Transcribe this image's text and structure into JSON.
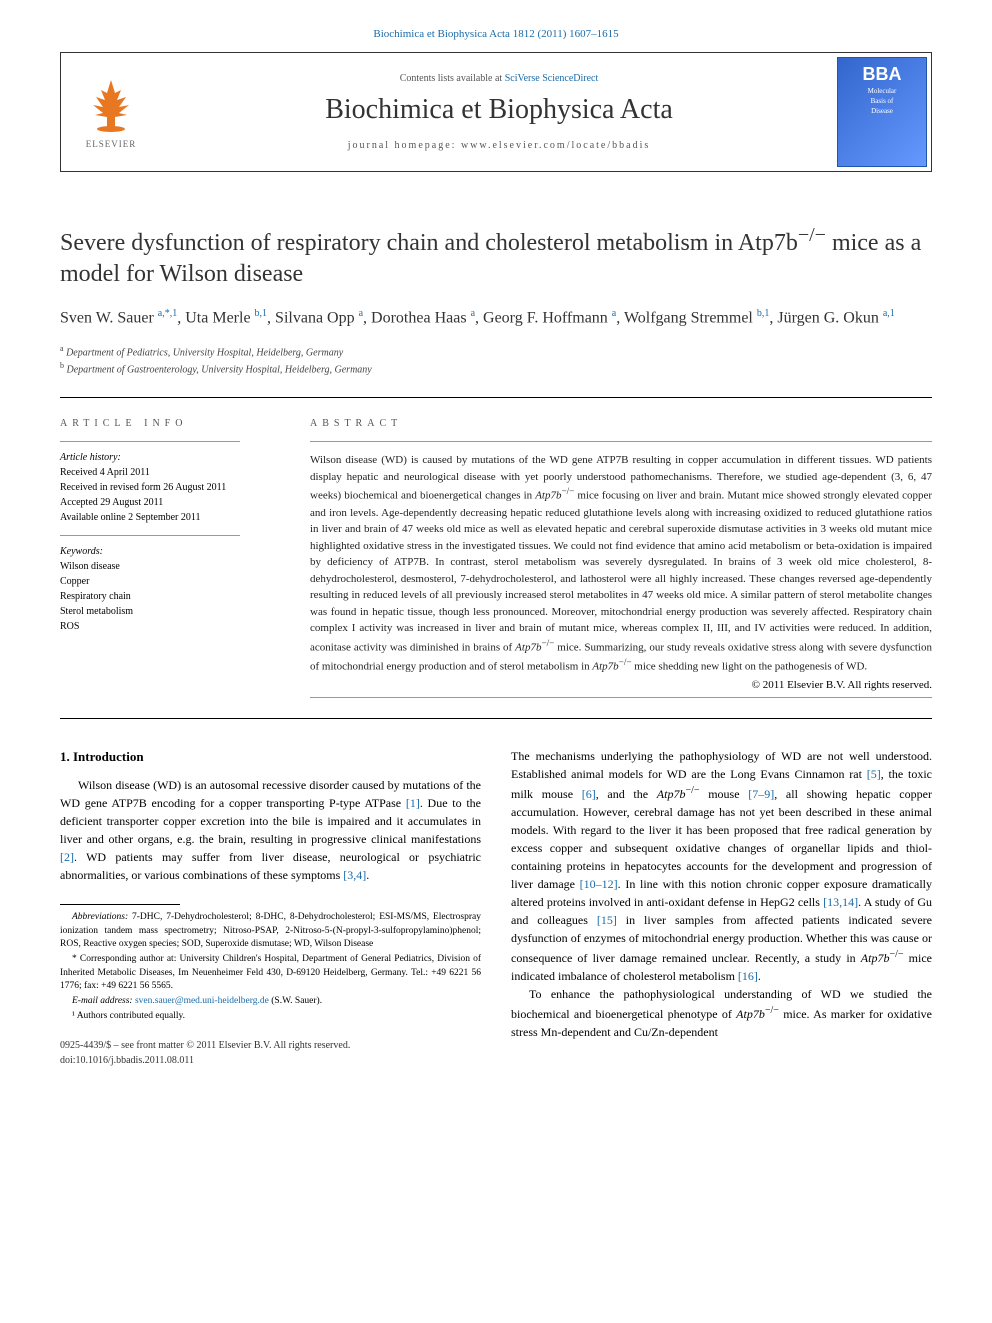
{
  "journal_ref": "Biochimica et Biophysica Acta 1812 (2011) 1607–1615",
  "header": {
    "contents_prefix": "Contents lists available at ",
    "contents_link": "SciVerse ScienceDirect",
    "journal_name": "Biochimica et Biophysica Acta",
    "homepage_prefix": "journal homepage: ",
    "homepage": "www.elsevier.com/locate/bbadis",
    "elsevier_label": "ELSEVIER",
    "cover_top": "BBA",
    "cover_sub1": "Molecular",
    "cover_sub2": "Basis of",
    "cover_sub3": "Disease"
  },
  "title_line1": "Severe dysfunction of respiratory chain and cholesterol metabolism in Atp7b",
  "title_sup": "−/−",
  "title_line2": " mice as a model for Wilson disease",
  "authors_html": "Sven W. Sauer <sup>a,*,1</sup>, Uta Merle <sup>b,1</sup>, Silvana Opp <sup>a</sup>, Dorothea Haas <sup>a</sup>, Georg F. Hoffmann <sup>a</sup>, Wolfgang Stremmel <sup>b,1</sup>, Jürgen G. Okun <sup>a,1</sup>",
  "affiliations": [
    {
      "sup": "a",
      "text": " Department of Pediatrics, University Hospital, Heidelberg, Germany"
    },
    {
      "sup": "b",
      "text": " Department of Gastroenterology, University Hospital, Heidelberg, Germany"
    }
  ],
  "article_info_label": "ARTICLE INFO",
  "abstract_label": "ABSTRACT",
  "history_label": "Article history:",
  "history": [
    "Received 4 April 2011",
    "Received in revised form 26 August 2011",
    "Accepted 29 August 2011",
    "Available online 2 September 2011"
  ],
  "keywords_label": "Keywords:",
  "keywords": [
    "Wilson disease",
    "Copper",
    "Respiratory chain",
    "Sterol metabolism",
    "ROS"
  ],
  "abstract": "Wilson disease (WD) is caused by mutations of the WD gene ATP7B resulting in copper accumulation in different tissues. WD patients display hepatic and neurological disease with yet poorly understood pathomechanisms. Therefore, we studied age-dependent (3, 6, 47 weeks) biochemical and bioenergetical changes in Atp7b−/− mice focusing on liver and brain. Mutant mice showed strongly elevated copper and iron levels. Age-dependently decreasing hepatic reduced glutathione levels along with increasing oxidized to reduced glutathione ratios in liver and brain of 47 weeks old mice as well as elevated hepatic and cerebral superoxide dismutase activities in 3 weeks old mutant mice highlighted oxidative stress in the investigated tissues. We could not find evidence that amino acid metabolism or beta-oxidation is impaired by deficiency of ATP7B. In contrast, sterol metabolism was severely dysregulated. In brains of 3 week old mice cholesterol, 8-dehydrocholesterol, desmosterol, 7-dehydrocholesterol, and lathosterol were all highly increased. These changes reversed age-dependently resulting in reduced levels of all previously increased sterol metabolites in 47 weeks old mice. A similar pattern of sterol metabolite changes was found in hepatic tissue, though less pronounced. Moreover, mitochondrial energy production was severely affected. Respiratory chain complex I activity was increased in liver and brain of mutant mice, whereas complex II, III, and IV activities were reduced. In addition, aconitase activity was diminished in brains of Atp7b−/− mice. Summarizing, our study reveals oxidative stress along with severe dysfunction of mitochondrial energy production and of sterol metabolism in Atp7b−/− mice shedding new light on the pathogenesis of WD.",
  "abstract_copyright": "© 2011 Elsevier B.V. All rights reserved.",
  "intro_heading": "1. Introduction",
  "intro_left": "Wilson disease (WD) is an autosomal recessive disorder caused by mutations of the WD gene ATP7B encoding for a copper transporting P-type ATPase [1]. Due to the deficient transporter copper excretion into the bile is impaired and it accumulates in liver and other organs, e.g. the brain, resulting in progressive clinical manifestations [2]. WD patients may suffer from liver disease, neurological or psychiatric abnormalities, or various combinations of these symptoms [3,4].",
  "intro_right_p1": "The mechanisms underlying the pathophysiology of WD are not well understood. Established animal models for WD are the Long Evans Cinnamon rat [5], the toxic milk mouse [6], and the Atp7b−/− mouse [7–9], all showing hepatic copper accumulation. However, cerebral damage has not yet been described in these animal models. With regard to the liver it has been proposed that free radical generation by excess copper and subsequent oxidative changes of organellar lipids and thiol-containing proteins in hepatocytes accounts for the development and progression of liver damage [10–12]. In line with this notion chronic copper exposure dramatically altered proteins involved in anti-oxidant defense in HepG2 cells [13,14]. A study of Gu and colleagues [15] in liver samples from affected patients indicated severe dysfunction of enzymes of mitochondrial energy production. Whether this was cause or consequence of liver damage remained unclear. Recently, a study in Atp7b−/− mice indicated imbalance of cholesterol metabolism [16].",
  "intro_right_p2": "To enhance the pathophysiological understanding of WD we studied the biochemical and bioenergetical phenotype of Atp7b−/− mice. As marker for oxidative stress Mn-dependent and Cu/Zn-dependent",
  "footnotes": {
    "abbrev_label": "Abbreviations:",
    "abbrev": " 7-DHC, 7-Dehydrocholesterol; 8-DHC, 8-Dehydrocholesterol; ESI-MS/MS, Electrospray ionization tandem mass spectrometry; Nitroso-PSAP, 2-Nitroso-5-(N-propyl-3-sulfopropylamino)phenol; ROS, Reactive oxygen species; SOD, Superoxide dismutase; WD, Wilson Disease",
    "corresponding": "* Corresponding author at: University Children's Hospital, Department of General Pediatrics, Division of Inherited Metabolic Diseases, Im Neuenheimer Feld 430, D-69120 Heidelberg, Germany. Tel.: +49 6221 56 1776; fax: +49 6221 56 5565.",
    "email_label": "E-mail address: ",
    "email": "sven.sauer@med.uni-heidelberg.de",
    "email_paren": " (S.W. Sauer).",
    "equal": "¹ Authors contributed equally."
  },
  "bottom": {
    "line1": "0925-4439/$ – see front matter © 2011 Elsevier B.V. All rights reserved.",
    "line2": "doi:10.1016/j.bbadis.2011.08.011"
  },
  "colors": {
    "link": "#1a6ba8",
    "orange": "#e87722",
    "text": "#000000",
    "bg": "#ffffff"
  }
}
